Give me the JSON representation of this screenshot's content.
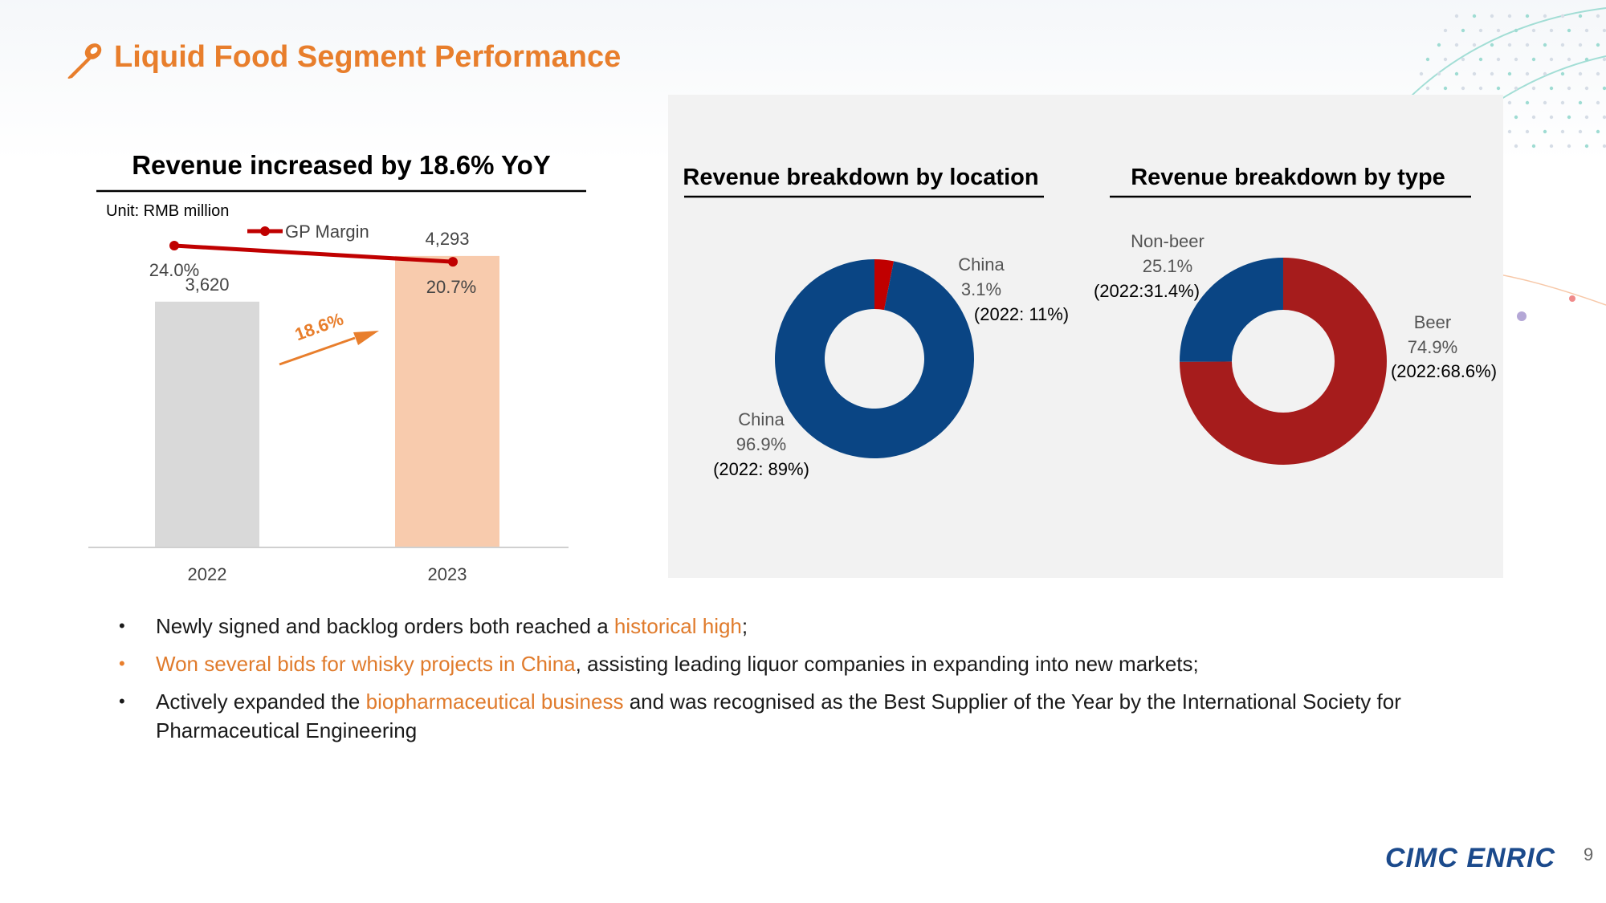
{
  "slide": {
    "title": "Liquid Food Segment Performance",
    "page_number": "9",
    "logo_text": "CIMC ENRIC"
  },
  "colors": {
    "accent_orange": "#e87e2c",
    "bar_2022": "#d9d9d9",
    "bar_2023": "#f8cbad",
    "gp_line": "#c00000",
    "navy": "#0a4584",
    "china_red": "#c00000",
    "beer_red": "#a61c1c"
  },
  "chart_data": [
    {
      "type": "bar",
      "title": "Revenue increased by 18.6% YoY",
      "unit_label": "Unit: RMB million",
      "categories": [
        "2022",
        "2023"
      ],
      "values": [
        3620,
        4293
      ],
      "value_labels": [
        "3,620",
        "4,293"
      ],
      "growth_label": "18.6%",
      "ylim": [
        0,
        4800
      ],
      "line_series": {
        "name": "GP Margin",
        "values": [
          24.0,
          20.7
        ],
        "labels": [
          "24.0%",
          "20.7%"
        ]
      }
    },
    {
      "type": "pie",
      "title": "Revenue breakdown by location",
      "slices": [
        {
          "name": "China",
          "value": 96.9,
          "label_pct": "96.9%",
          "prior": "(2022: 89%)"
        },
        {
          "name": "China",
          "value": 3.1,
          "label_pct": "3.1%",
          "prior": "(2022: 11%)"
        }
      ]
    },
    {
      "type": "pie",
      "title": "Revenue breakdown by type",
      "slices": [
        {
          "name": "Beer",
          "value": 74.9,
          "label_pct": "74.9%",
          "prior": "(2022:68.6%)"
        },
        {
          "name": "Non-beer",
          "value": 25.1,
          "label_pct": "25.1%",
          "prior": "(2022:31.4%)"
        }
      ]
    }
  ],
  "bullets": [
    {
      "parts": [
        {
          "text": "Newly signed and backlog orders both reached a ",
          "hl": false
        },
        {
          "text": "historical high",
          "hl": true
        },
        {
          "text": ";",
          "hl": false
        }
      ]
    },
    {
      "parts": [
        {
          "text": "Won several bids for whisky projects in China",
          "hl": true
        },
        {
          "text": ", assisting leading liquor companies in expanding into new markets;",
          "hl": false
        }
      ]
    },
    {
      "parts": [
        {
          "text": "Actively expanded the ",
          "hl": false
        },
        {
          "text": "biopharmaceutical business",
          "hl": true
        },
        {
          "text": " and was recognised as the Best Supplier of the Year by the International Society for Pharmaceutical Engineering",
          "hl": false
        }
      ]
    }
  ]
}
